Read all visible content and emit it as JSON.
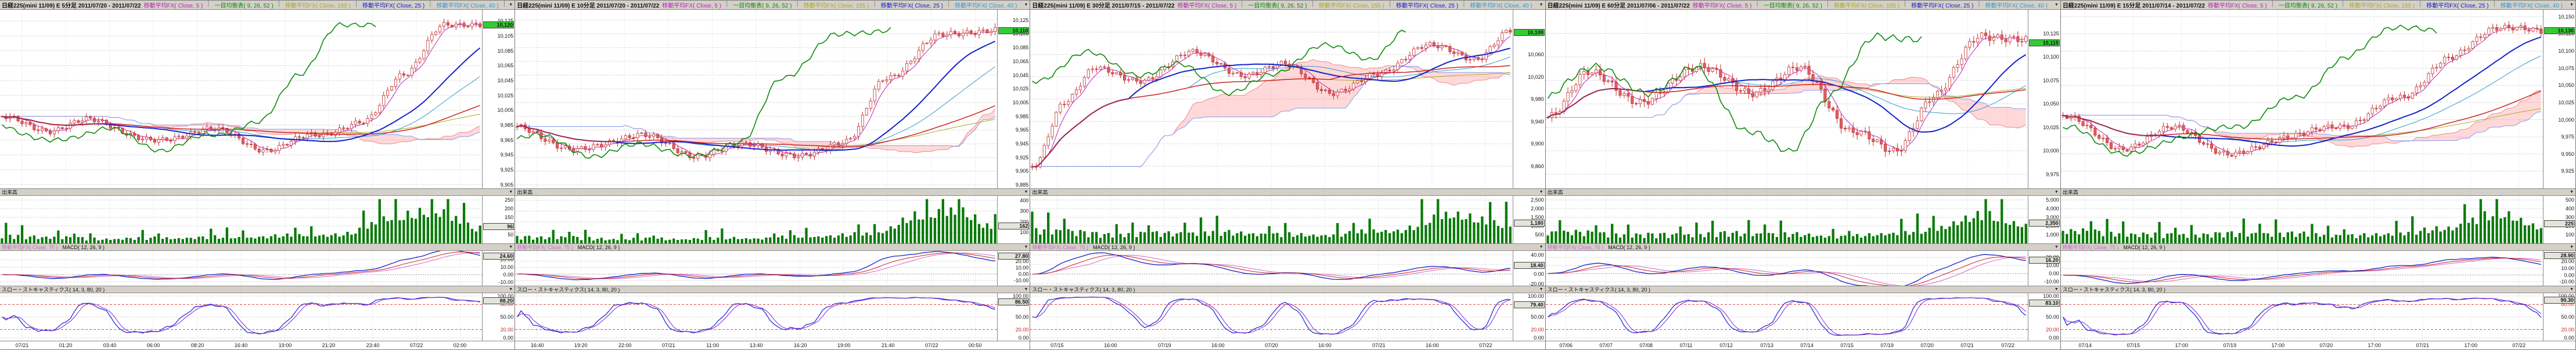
{
  "ui": {
    "collapse_icon": "▼"
  },
  "colors": {
    "header_bg": "#d4d0c8",
    "grid": "#b8b8b8",
    "up_candle": "#ffffff",
    "down_candle": "#e06060",
    "candle_stroke": "#c03030",
    "volume": "#0a7a0a",
    "ma5": "#bb22bb",
    "ma25": "#1122cc",
    "ma40": "#3399cc",
    "ma75": "#cc2222",
    "ma155": "#aaaa22",
    "chikou": "#0a8a0a",
    "cloud_fill": "rgba(255,120,120,0.28)",
    "cloud_edge_a": "#ee8888",
    "cloud_edge_b": "#8899ee",
    "macd_line": "#1122cc",
    "macd_signal": "#cc2222",
    "macd_ma": "#cc66cc",
    "stoch_k": "#1122cc",
    "stoch_d": "#8822cc",
    "band": "#dd4444",
    "last_price_bg": "#33cc33",
    "last_value_bg": "#e4e4da"
  },
  "chart_data": [
    {
      "type": "candlestick",
      "header": {
        "title": "日経225(mini 11/09) E 5分足 2011/07/20 - 2011/07/22",
        "indicators": [
          {
            "label": "移動平均FX( Close, 5 )",
            "color": "#bb22bb"
          },
          {
            "label": "一目均衡表( 9, 26, 52 )",
            "color": "#0a8a0a"
          },
          {
            "label": "移動平均FX( Close, 155 )",
            "color": "#aaaa22"
          },
          {
            "label": "移動平均FX( Close, 25 )",
            "color": "#1122cc"
          },
          {
            "label": "移動平均FX( Close, 40 )",
            "color": "#3399cc"
          },
          {
            "label": "移動平均FX( Close, 75 )",
            "color": "#cc2222"
          }
        ]
      },
      "bars": 120,
      "price": {
        "anchors": [
          [
            0,
            9995
          ],
          [
            12,
            9978
          ],
          [
            22,
            9992
          ],
          [
            38,
            9963
          ],
          [
            52,
            9980
          ],
          [
            66,
            9952
          ],
          [
            78,
            9972
          ],
          [
            90,
            9988
          ],
          [
            100,
            10055
          ],
          [
            110,
            10118
          ],
          [
            119,
            10122
          ]
        ],
        "noise": 5,
        "min": 9900,
        "max": 10140,
        "ticks": [
          10125,
          10105,
          10085,
          10065,
          10045,
          10025,
          10005,
          9985,
          9965,
          9945,
          9925,
          9905
        ],
        "last": 10120
      },
      "volume": {
        "label": "出来高",
        "anchors": [
          [
            0,
            50
          ],
          [
            25,
            30
          ],
          [
            55,
            38
          ],
          [
            85,
            55
          ],
          [
            98,
            170
          ],
          [
            108,
            200
          ],
          [
            119,
            95
          ]
        ],
        "max": 260,
        "ticks": [
          250,
          200,
          150,
          100,
          50
        ],
        "last": 96
      },
      "macd": {
        "label_ma": "移動平均FX( Close, 75 )",
        "label_macd": "MACD( 12, 26, 9 )",
        "ticks": [
          20,
          10,
          0,
          -10
        ],
        "range": [
          -15,
          32
        ],
        "last": 24.6
      },
      "stoch": {
        "label": "スロー・ストキャスティクス( 14, 3, 80, 20 )",
        "ticks": [
          100,
          80,
          50,
          20,
          0
        ],
        "bands": [
          80,
          20
        ],
        "last": 88.2
      },
      "x_labels": [
        "07/21",
        "01:20",
        "03:40",
        "06:00",
        "08:20",
        "16:40",
        "19:00",
        "21:20",
        "23:40",
        "07/22",
        "02:00"
      ]
    },
    {
      "type": "candlestick",
      "header": {
        "title": "日経225(mini 11/09) E 10分足 2011/07/20 - 2011/07/22",
        "indicators": [
          {
            "label": "移動平均FX( Close, 5 )",
            "color": "#bb22bb"
          },
          {
            "label": "一目均衡表( 9, 26, 52 )",
            "color": "#0a8a0a"
          },
          {
            "label": "移動平均FX( Close, 155 )",
            "color": "#aaaa22"
          },
          {
            "label": "移動平均FX( Close, 25 )",
            "color": "#1122cc"
          },
          {
            "label": "移動平均FX( Close, 40 )",
            "color": "#3399cc"
          },
          {
            "label": "移動平均FX( Close, 75 )",
            "color": "#cc2222"
          }
        ]
      },
      "bars": 120,
      "price": {
        "anchors": [
          [
            0,
            9968
          ],
          [
            15,
            9935
          ],
          [
            30,
            9958
          ],
          [
            45,
            9928
          ],
          [
            58,
            9945
          ],
          [
            70,
            9925
          ],
          [
            82,
            9950
          ],
          [
            92,
            10040
          ],
          [
            105,
            10102
          ],
          [
            119,
            10112
          ]
        ],
        "noise": 6,
        "min": 9880,
        "max": 10140,
        "ticks": [
          10125,
          10105,
          10085,
          10065,
          10045,
          10025,
          10005,
          9985,
          9965,
          9945,
          9925,
          9905,
          9885
        ],
        "last": 10110
      },
      "volume": {
        "label": "出来高",
        "anchors": [
          [
            0,
            70
          ],
          [
            30,
            45
          ],
          [
            60,
            55
          ],
          [
            88,
            90
          ],
          [
            100,
            280
          ],
          [
            110,
            330
          ],
          [
            119,
            150
          ]
        ],
        "max": 420,
        "ticks": [
          400,
          300,
          200,
          100
        ],
        "last": 162
      },
      "macd": {
        "label_ma": "移動平均FX( Close, 75 )",
        "label_macd": "MACD( 12, 26, 9 )",
        "ticks": [
          20,
          10,
          0,
          -10
        ],
        "range": [
          -18,
          36
        ],
        "last": 27.8
      },
      "stoch": {
        "label": "スロー・ストキャスティクス( 14, 3, 80, 20 )",
        "ticks": [
          100,
          80,
          50,
          20,
          0
        ],
        "bands": [
          80,
          20
        ],
        "last": 86.5
      },
      "x_labels": [
        "16:40",
        "19:20",
        "22:00",
        "07/21",
        "11:00",
        "13:40",
        "16:20",
        "19:00",
        "21:40",
        "07/22",
        "00:50"
      ]
    },
    {
      "type": "candlestick",
      "header": {
        "title": "日経225(mini 11/09) E 30分足 2011/07/15 - 2011/07/22",
        "indicators": [
          {
            "label": "移動平均FX( Close, 5 )",
            "color": "#bb22bb"
          },
          {
            "label": "一目均衡表( 9, 26, 52 )",
            "color": "#0a8a0a"
          },
          {
            "label": "移動平均FX( Close, 155 )",
            "color": "#aaaa22"
          },
          {
            "label": "移動平均FX( Close, 25 )",
            "color": "#1122cc"
          },
          {
            "label": "移動平均FX( Close, 40 )",
            "color": "#3399cc"
          },
          {
            "label": "移動平均FX( Close, 75 )",
            "color": "#cc2222"
          }
        ]
      },
      "bars": 120,
      "price": {
        "anchors": [
          [
            0,
            9858
          ],
          [
            8,
            9975
          ],
          [
            16,
            10035
          ],
          [
            28,
            10012
          ],
          [
            40,
            10068
          ],
          [
            52,
            10020
          ],
          [
            62,
            10045
          ],
          [
            74,
            9992
          ],
          [
            86,
            10022
          ],
          [
            98,
            10078
          ],
          [
            110,
            10052
          ],
          [
            119,
            10102
          ]
        ],
        "noise": 7,
        "min": 9820,
        "max": 10140,
        "ticks": [
          10100,
          10060,
          10020,
          9980,
          9940,
          9900,
          9860
        ],
        "last": 10100
      },
      "volume": {
        "label": "出来高",
        "anchors": [
          [
            0,
            900
          ],
          [
            20,
            600
          ],
          [
            45,
            700
          ],
          [
            70,
            520
          ],
          [
            90,
            800
          ],
          [
            105,
            1800
          ],
          [
            119,
            1100
          ]
        ],
        "max": 2600,
        "ticks": [
          2500,
          2000,
          1500,
          1000,
          500
        ],
        "last": 1180
      },
      "macd": {
        "label_ma": "移動平均FX( Close, 75 )",
        "label_macd": "MACD( 12, 26, 9 )",
        "ticks": [
          40,
          20,
          0,
          -20
        ],
        "range": [
          -24,
          48
        ],
        "last": 18.4
      },
      "stoch": {
        "label": "スロー・ストキャスティクス( 14, 3, 80, 20 )",
        "ticks": [
          100,
          80,
          50,
          20,
          0
        ],
        "bands": [
          80,
          20
        ],
        "last": 79.4
      },
      "x_labels": [
        "07/15",
        "16:00",
        "07/19",
        "16:00",
        "07/20",
        "16:00",
        "07/21",
        "16:00",
        "07/22"
      ]
    },
    {
      "type": "candlestick",
      "header": {
        "title": "日経225(mini 11/09) E 60分足 2011/07/06 - 2011/07/22",
        "indicators": [
          {
            "label": "移動平均FX( Close, 5 )",
            "color": "#bb22bb"
          },
          {
            "label": "一目均衡表( 9, 26, 52 )",
            "color": "#0a8a0a"
          },
          {
            "label": "移動平均FX( Close, 155 )",
            "color": "#aaaa22"
          },
          {
            "label": "移動平均FX( Close, 25 )",
            "color": "#1122cc"
          },
          {
            "label": "移動平均FX( Close, 40 )",
            "color": "#3399cc"
          },
          {
            "label": "移動平均FX( Close, 75 )",
            "color": "#cc2222"
          }
        ]
      },
      "bars": 120,
      "price": {
        "anchors": [
          [
            0,
            10038
          ],
          [
            10,
            10082
          ],
          [
            24,
            10052
          ],
          [
            38,
            10092
          ],
          [
            50,
            10060
          ],
          [
            62,
            10088
          ],
          [
            76,
            10022
          ],
          [
            86,
            9998
          ],
          [
            96,
            10058
          ],
          [
            108,
            10124
          ],
          [
            119,
            10116
          ]
        ],
        "noise": 6,
        "min": 9960,
        "max": 10150,
        "ticks": [
          10125,
          10100,
          10075,
          10050,
          10025,
          10000,
          9975
        ],
        "last": 10115
      },
      "volume": {
        "label": "出来高",
        "anchors": [
          [
            0,
            1500
          ],
          [
            25,
            1100
          ],
          [
            50,
            1300
          ],
          [
            75,
            900
          ],
          [
            95,
            1600
          ],
          [
            108,
            3600
          ],
          [
            119,
            2200
          ]
        ],
        "max": 5200,
        "ticks": [
          5000,
          4000,
          3000,
          2000,
          1000
        ],
        "last": 2350
      },
      "macd": {
        "label_ma": "移動平均FX( Close, 75 )",
        "label_macd": "MACD( 12, 26, 9 )",
        "ticks": [
          20,
          10,
          0,
          -10
        ],
        "range": [
          -15,
          28
        ],
        "last": 16.2
      },
      "stoch": {
        "label": "スロー・ストキャスティクス( 14, 3, 80, 20 )",
        "ticks": [
          100,
          80,
          50,
          20,
          0
        ],
        "bands": [
          80,
          20
        ],
        "last": 83.1
      },
      "x_labels": [
        "07/06",
        "07/07",
        "07/08",
        "07/11",
        "07/12",
        "07/13",
        "07/14",
        "07/15",
        "07/19",
        "07/20",
        "07/21",
        "07/22"
      ]
    },
    {
      "type": "candlestick",
      "header": {
        "title": "日経225(mini 11/09) E 15分足 2011/07/14 - 2011/07/22",
        "indicators": [
          {
            "label": "移動平均FX( Close, 5 )",
            "color": "#bb22bb"
          },
          {
            "label": "一目均衡表( 9, 26, 52 )",
            "color": "#0a8a0a"
          },
          {
            "label": "移動平均FX( Close, 155 )",
            "color": "#aaaa22"
          },
          {
            "label": "移動平均FX( Close, 25 )",
            "color": "#1122cc"
          },
          {
            "label": "移動平均FX( Close, 40 )",
            "color": "#3399cc"
          },
          {
            "label": "移動平均FX( Close, 75 )",
            "color": "#cc2222"
          }
        ]
      },
      "bars": 120,
      "price": {
        "anchors": [
          [
            0,
            10008
          ],
          [
            14,
            9958
          ],
          [
            28,
            9988
          ],
          [
            42,
            9948
          ],
          [
            56,
            9976
          ],
          [
            70,
            9992
          ],
          [
            84,
            10032
          ],
          [
            96,
            10088
          ],
          [
            108,
            10136
          ],
          [
            119,
            10128
          ]
        ],
        "noise": 6,
        "min": 9900,
        "max": 10160,
        "ticks": [
          10150,
          10125,
          10100,
          10075,
          10050,
          10025,
          10000,
          9975,
          9950,
          9925
        ],
        "last": 10130
      },
      "volume": {
        "label": "出来高",
        "anchors": [
          [
            0,
            160
          ],
          [
            25,
            110
          ],
          [
            50,
            130
          ],
          [
            75,
            100
          ],
          [
            95,
            180
          ],
          [
            108,
            380
          ],
          [
            119,
            210
          ]
        ],
        "max": 520,
        "ticks": [
          500,
          400,
          300,
          200,
          100
        ],
        "last": 225
      },
      "macd": {
        "label_ma": "移動平均FX( Close, 75 )",
        "label_macd": "MACD( 12, 26, 9 )",
        "ticks": [
          20,
          10,
          0,
          -10
        ],
        "range": [
          -16,
          36
        ],
        "last": 28.9
      },
      "stoch": {
        "label": "スロー・ストキャスティクス( 14, 3, 80, 20 )",
        "ticks": [
          100,
          80,
          50,
          20,
          0
        ],
        "bands": [
          80,
          20
        ],
        "last": 90.3
      },
      "x_labels": [
        "07/14",
        "07/15",
        "17:00",
        "07/19",
        "17:00",
        "07/20",
        "17:00",
        "07/21",
        "17:00",
        "07/22"
      ]
    }
  ]
}
